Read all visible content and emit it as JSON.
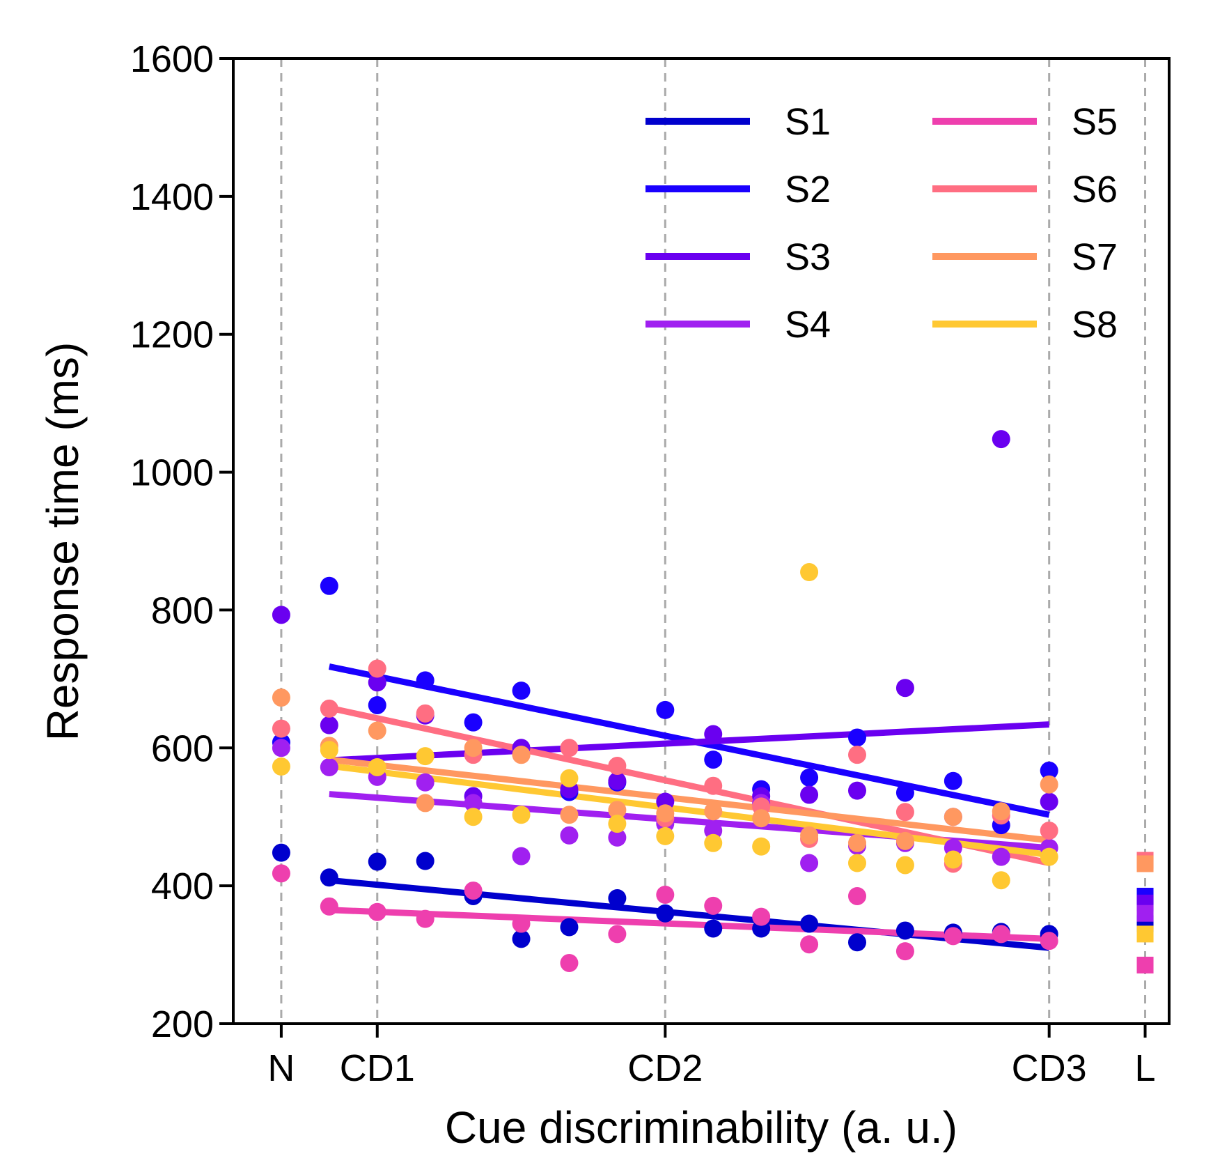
{
  "chart_data": {
    "type": "scatter",
    "xlabel": "Cue discriminability (a. u.)",
    "ylabel": "Response time (ms)",
    "ylim": [
      200,
      1600
    ],
    "xlim": [
      -0.5,
      9.25
    ],
    "yticks": [
      200,
      400,
      600,
      800,
      1000,
      1200,
      1400,
      1600
    ],
    "xticks": [
      {
        "label": "N",
        "value": 0
      },
      {
        "label": "CD1",
        "value": 1
      },
      {
        "label": "CD2",
        "value": 4
      },
      {
        "label": "CD3",
        "value": 8
      },
      {
        "label": "L",
        "value": 9
      }
    ],
    "dashed_vlines_at": [
      0,
      1,
      4,
      8,
      9
    ],
    "legend_position": "top-right",
    "legend_columns": 2,
    "series": [
      {
        "name": "S1",
        "color": "#0000cd",
        "fit": [
          [
            0.5,
            408
          ],
          [
            8,
            310
          ]
        ],
        "points": [
          [
            0,
            448
          ],
          [
            0.5,
            412
          ],
          [
            1,
            435
          ],
          [
            1.5,
            436
          ],
          [
            2,
            385
          ],
          [
            2.5,
            323
          ],
          [
            3,
            340
          ],
          [
            3.5,
            382
          ],
          [
            4,
            360
          ],
          [
            4.5,
            338
          ],
          [
            5,
            338
          ],
          [
            5.5,
            345
          ],
          [
            6,
            318
          ],
          [
            6.5,
            335
          ],
          [
            7,
            332
          ],
          [
            7.5,
            333
          ],
          [
            8,
            330
          ],
          [
            9,
            345
          ]
        ]
      },
      {
        "name": "S2",
        "color": "#1a00ff",
        "fit": [
          [
            0.5,
            718
          ],
          [
            8,
            503
          ]
        ],
        "points": [
          [
            0,
            608
          ],
          [
            0.5,
            835
          ],
          [
            1,
            662
          ],
          [
            1.5,
            698
          ],
          [
            2,
            637
          ],
          [
            2.5,
            683
          ],
          [
            3,
            536
          ],
          [
            3.5,
            550
          ],
          [
            4,
            655
          ],
          [
            4.5,
            583
          ],
          [
            5,
            540
          ],
          [
            5.5,
            557
          ],
          [
            6,
            615
          ],
          [
            6.5,
            535
          ],
          [
            7,
            552
          ],
          [
            7.5,
            488
          ],
          [
            8,
            567
          ],
          [
            9,
            385
          ]
        ]
      },
      {
        "name": "S3",
        "color": "#6a00f0",
        "fit": [
          [
            0.5,
            582
          ],
          [
            8,
            634
          ]
        ],
        "points": [
          [
            0,
            793
          ],
          [
            0.5,
            633
          ],
          [
            1,
            695
          ],
          [
            1.5,
            647
          ],
          [
            2,
            530
          ],
          [
            2.5,
            600
          ],
          [
            3,
            540
          ],
          [
            3.5,
            552
          ],
          [
            4,
            522
          ],
          [
            4.5,
            620
          ],
          [
            5,
            530
          ],
          [
            5.5,
            532
          ],
          [
            6,
            538
          ],
          [
            6.5,
            687
          ],
          [
            7,
            500
          ],
          [
            7.5,
            1048
          ],
          [
            8,
            522
          ],
          [
            9,
            375
          ]
        ]
      },
      {
        "name": "S4",
        "color": "#a020f0",
        "fit": [
          [
            0.5,
            533
          ],
          [
            8,
            455
          ]
        ],
        "points": [
          [
            0,
            600
          ],
          [
            0.5,
            572
          ],
          [
            1,
            558
          ],
          [
            1.5,
            550
          ],
          [
            2,
            520
          ],
          [
            2.5,
            443
          ],
          [
            3,
            473
          ],
          [
            3.5,
            470
          ],
          [
            4,
            490
          ],
          [
            4.5,
            480
          ],
          [
            5,
            520
          ],
          [
            5.5,
            433
          ],
          [
            6,
            458
          ],
          [
            6.5,
            462
          ],
          [
            7,
            455
          ],
          [
            7.5,
            442
          ],
          [
            8,
            455
          ],
          [
            9,
            360
          ]
        ]
      },
      {
        "name": "S5",
        "color": "#ee3fae",
        "fit": [
          [
            0.5,
            365
          ],
          [
            8,
            323
          ]
        ],
        "points": [
          [
            0,
            418
          ],
          [
            0.5,
            370
          ],
          [
            1,
            362
          ],
          [
            1.5,
            352
          ],
          [
            2,
            393
          ],
          [
            2.5,
            345
          ],
          [
            3,
            288
          ],
          [
            3.5,
            330
          ],
          [
            4,
            387
          ],
          [
            4.5,
            371
          ],
          [
            5,
            355
          ],
          [
            5.5,
            315
          ],
          [
            6,
            385
          ],
          [
            6.5,
            305
          ],
          [
            7,
            327
          ],
          [
            7.5,
            330
          ],
          [
            8,
            320
          ],
          [
            9,
            285
          ]
        ]
      },
      {
        "name": "S6",
        "color": "#ff6e82",
        "fit": [
          [
            0.5,
            658
          ],
          [
            8,
            433
          ]
        ],
        "points": [
          [
            0,
            628
          ],
          [
            0.5,
            657
          ],
          [
            1,
            715
          ],
          [
            1.5,
            650
          ],
          [
            2,
            590
          ],
          [
            2.5,
            590
          ],
          [
            3,
            600
          ],
          [
            3.5,
            574
          ],
          [
            4,
            498
          ],
          [
            4.5,
            545
          ],
          [
            5,
            515
          ],
          [
            5.5,
            468
          ],
          [
            6,
            590
          ],
          [
            6.5,
            507
          ],
          [
            7,
            432
          ],
          [
            7.5,
            502
          ],
          [
            8,
            480
          ],
          [
            9,
            437
          ]
        ]
      },
      {
        "name": "S7",
        "color": "#ff9860",
        "fit": [
          [
            0.5,
            583
          ],
          [
            8,
            466
          ]
        ],
        "points": [
          [
            0,
            673
          ],
          [
            0.5,
            603
          ],
          [
            1,
            625
          ],
          [
            1.5,
            520
          ],
          [
            2,
            600
          ],
          [
            2.5,
            590
          ],
          [
            3,
            503
          ],
          [
            3.5,
            510
          ],
          [
            4,
            505
          ],
          [
            4.5,
            508
          ],
          [
            5,
            498
          ],
          [
            5.5,
            473
          ],
          [
            6,
            462
          ],
          [
            6.5,
            465
          ],
          [
            7,
            500
          ],
          [
            7.5,
            508
          ],
          [
            8,
            547
          ],
          [
            9,
            432
          ]
        ]
      },
      {
        "name": "S8",
        "color": "#ffc832",
        "fit": [
          [
            0.5,
            574
          ],
          [
            8,
            445
          ]
        ],
        "points": [
          [
            0,
            573
          ],
          [
            0.5,
            597
          ],
          [
            1,
            572
          ],
          [
            1.5,
            588
          ],
          [
            2,
            500
          ],
          [
            2.5,
            503
          ],
          [
            3,
            556
          ],
          [
            3.5,
            490
          ],
          [
            4,
            472
          ],
          [
            4.5,
            462
          ],
          [
            5,
            457
          ],
          [
            5.5,
            855
          ],
          [
            6,
            433
          ],
          [
            6.5,
            430
          ],
          [
            7,
            438
          ],
          [
            7.5,
            408
          ],
          [
            8,
            442
          ],
          [
            9,
            330
          ]
        ]
      }
    ]
  }
}
